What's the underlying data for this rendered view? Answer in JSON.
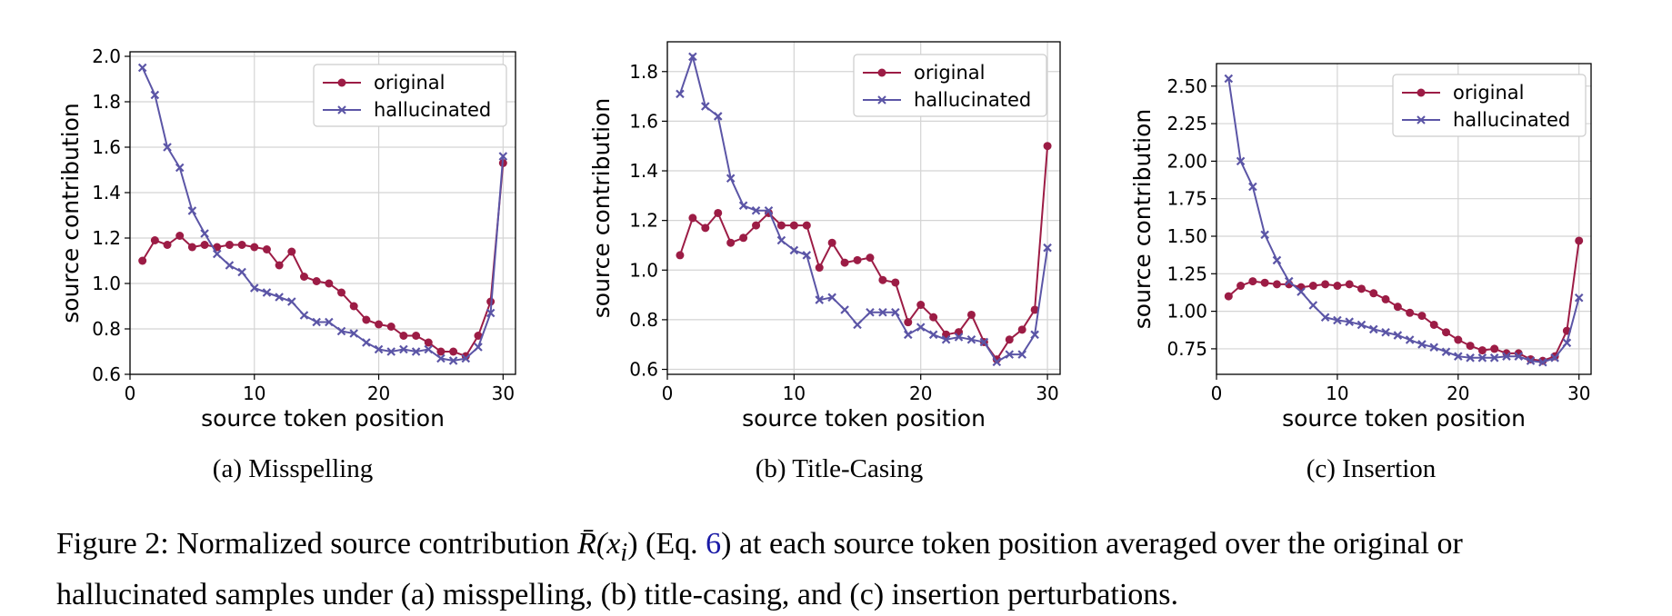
{
  "colors": {
    "original": "#9c1c45",
    "hallucinated": "#5b55a6"
  },
  "charts": [
    {
      "chart_data": {
        "type": "line",
        "xlabel": "source token position",
        "ylabel": "source contribution",
        "xlim": [
          0,
          31
        ],
        "ylim": [
          0.6,
          2.02
        ],
        "xticks": [
          0,
          10,
          20,
          30
        ],
        "yticks": [
          0.6,
          0.8,
          1.0,
          1.2,
          1.4,
          1.6,
          1.8,
          2.0
        ],
        "ytick_labels": [
          "0.6",
          "0.8",
          "1.0",
          "1.2",
          "1.4",
          "1.6",
          "1.8",
          "2.0"
        ],
        "grid": true,
        "legend": "top-right",
        "x": [
          1,
          2,
          3,
          4,
          5,
          6,
          7,
          8,
          9,
          10,
          11,
          12,
          13,
          14,
          15,
          16,
          17,
          18,
          19,
          20,
          21,
          22,
          23,
          24,
          25,
          26,
          27,
          28,
          29,
          30
        ],
        "series": [
          {
            "name": "original",
            "marker": "o",
            "values": [
              1.1,
              1.19,
              1.17,
              1.21,
              1.16,
              1.17,
              1.16,
              1.17,
              1.17,
              1.16,
              1.15,
              1.08,
              1.14,
              1.03,
              1.01,
              1.0,
              0.96,
              0.9,
              0.84,
              0.82,
              0.81,
              0.77,
              0.77,
              0.74,
              0.7,
              0.7,
              0.68,
              0.77,
              0.92,
              1.53
            ]
          },
          {
            "name": "hallucinated",
            "marker": "x",
            "values": [
              1.95,
              1.83,
              1.6,
              1.51,
              1.32,
              1.22,
              1.13,
              1.08,
              1.05,
              0.98,
              0.96,
              0.94,
              0.92,
              0.86,
              0.83,
              0.83,
              0.79,
              0.78,
              0.74,
              0.71,
              0.7,
              0.71,
              0.7,
              0.71,
              0.67,
              0.66,
              0.67,
              0.72,
              0.87,
              1.56
            ]
          }
        ]
      },
      "caption": "(a) Misspelling"
    },
    {
      "chart_data": {
        "type": "line",
        "xlabel": "source token position",
        "ylabel": "source contribution",
        "xlim": [
          0,
          31
        ],
        "ylim": [
          0.58,
          1.92
        ],
        "xticks": [
          0,
          10,
          20,
          30
        ],
        "yticks": [
          0.6,
          0.8,
          1.0,
          1.2,
          1.4,
          1.6,
          1.8
        ],
        "ytick_labels": [
          "0.6",
          "0.8",
          "1.0",
          "1.2",
          "1.4",
          "1.6",
          "1.8"
        ],
        "grid": true,
        "legend": "top-right",
        "x": [
          1,
          2,
          3,
          4,
          5,
          6,
          7,
          8,
          9,
          10,
          11,
          12,
          13,
          14,
          15,
          16,
          17,
          18,
          19,
          20,
          21,
          22,
          23,
          24,
          25,
          26,
          27,
          28,
          29,
          30
        ],
        "series": [
          {
            "name": "original",
            "marker": "o",
            "values": [
              1.06,
              1.21,
              1.17,
              1.23,
              1.11,
              1.13,
              1.18,
              1.23,
              1.18,
              1.18,
              1.18,
              1.01,
              1.11,
              1.03,
              1.04,
              1.05,
              0.96,
              0.95,
              0.79,
              0.86,
              0.81,
              0.74,
              0.75,
              0.82,
              0.71,
              0.64,
              0.72,
              0.76,
              0.84,
              1.5
            ]
          },
          {
            "name": "hallucinated",
            "marker": "x",
            "values": [
              1.71,
              1.86,
              1.66,
              1.62,
              1.37,
              1.26,
              1.24,
              1.24,
              1.12,
              1.08,
              1.06,
              0.88,
              0.89,
              0.84,
              0.78,
              0.83,
              0.83,
              0.83,
              0.74,
              0.77,
              0.74,
              0.72,
              0.73,
              0.72,
              0.71,
              0.63,
              0.66,
              0.66,
              0.74,
              1.09
            ]
          }
        ]
      },
      "caption": "(b) Title-Casing"
    },
    {
      "chart_data": {
        "type": "line",
        "xlabel": "source token position",
        "ylabel": "source contribution",
        "xlim": [
          0,
          31
        ],
        "ylim": [
          0.58,
          2.65
        ],
        "xticks": [
          0,
          10,
          20,
          30
        ],
        "yticks": [
          0.75,
          1.0,
          1.25,
          1.5,
          1.75,
          2.0,
          2.25,
          2.5
        ],
        "ytick_labels": [
          "0.75",
          "1.00",
          "1.25",
          "1.50",
          "1.75",
          "2.00",
          "2.25",
          "2.50"
        ],
        "grid": true,
        "legend": "top-right",
        "x": [
          1,
          2,
          3,
          4,
          5,
          6,
          7,
          8,
          9,
          10,
          11,
          12,
          13,
          14,
          15,
          16,
          17,
          18,
          19,
          20,
          21,
          22,
          23,
          24,
          25,
          26,
          27,
          28,
          29,
          30
        ],
        "series": [
          {
            "name": "original",
            "marker": "o",
            "values": [
              1.1,
              1.17,
              1.2,
              1.19,
              1.18,
              1.18,
              1.16,
              1.17,
              1.18,
              1.17,
              1.18,
              1.15,
              1.12,
              1.08,
              1.03,
              0.99,
              0.97,
              0.91,
              0.86,
              0.81,
              0.77,
              0.74,
              0.75,
              0.72,
              0.72,
              0.68,
              0.67,
              0.7,
              0.87,
              1.47
            ]
          },
          {
            "name": "hallucinated",
            "marker": "x",
            "values": [
              2.55,
              2.0,
              1.83,
              1.51,
              1.34,
              1.2,
              1.13,
              1.04,
              0.96,
              0.94,
              0.93,
              0.91,
              0.88,
              0.86,
              0.84,
              0.81,
              0.78,
              0.76,
              0.73,
              0.7,
              0.69,
              0.69,
              0.69,
              0.7,
              0.7,
              0.67,
              0.66,
              0.69,
              0.79,
              1.09
            ]
          }
        ]
      },
      "caption": "(c) Insertion"
    }
  ],
  "figure_caption": {
    "prefix": "Figure 2: Normalized source contribution ",
    "math": "R̄(x",
    "math_sub": "i",
    "math_close": ")",
    "paren_open": " (Eq. ",
    "eq_ref": "6",
    "rest_line1": ") at each source token position averaged over the original or",
    "line2": "hallucinated samples under (a) misspelling, (b) title-casing, and (c) insertion perturbations."
  }
}
